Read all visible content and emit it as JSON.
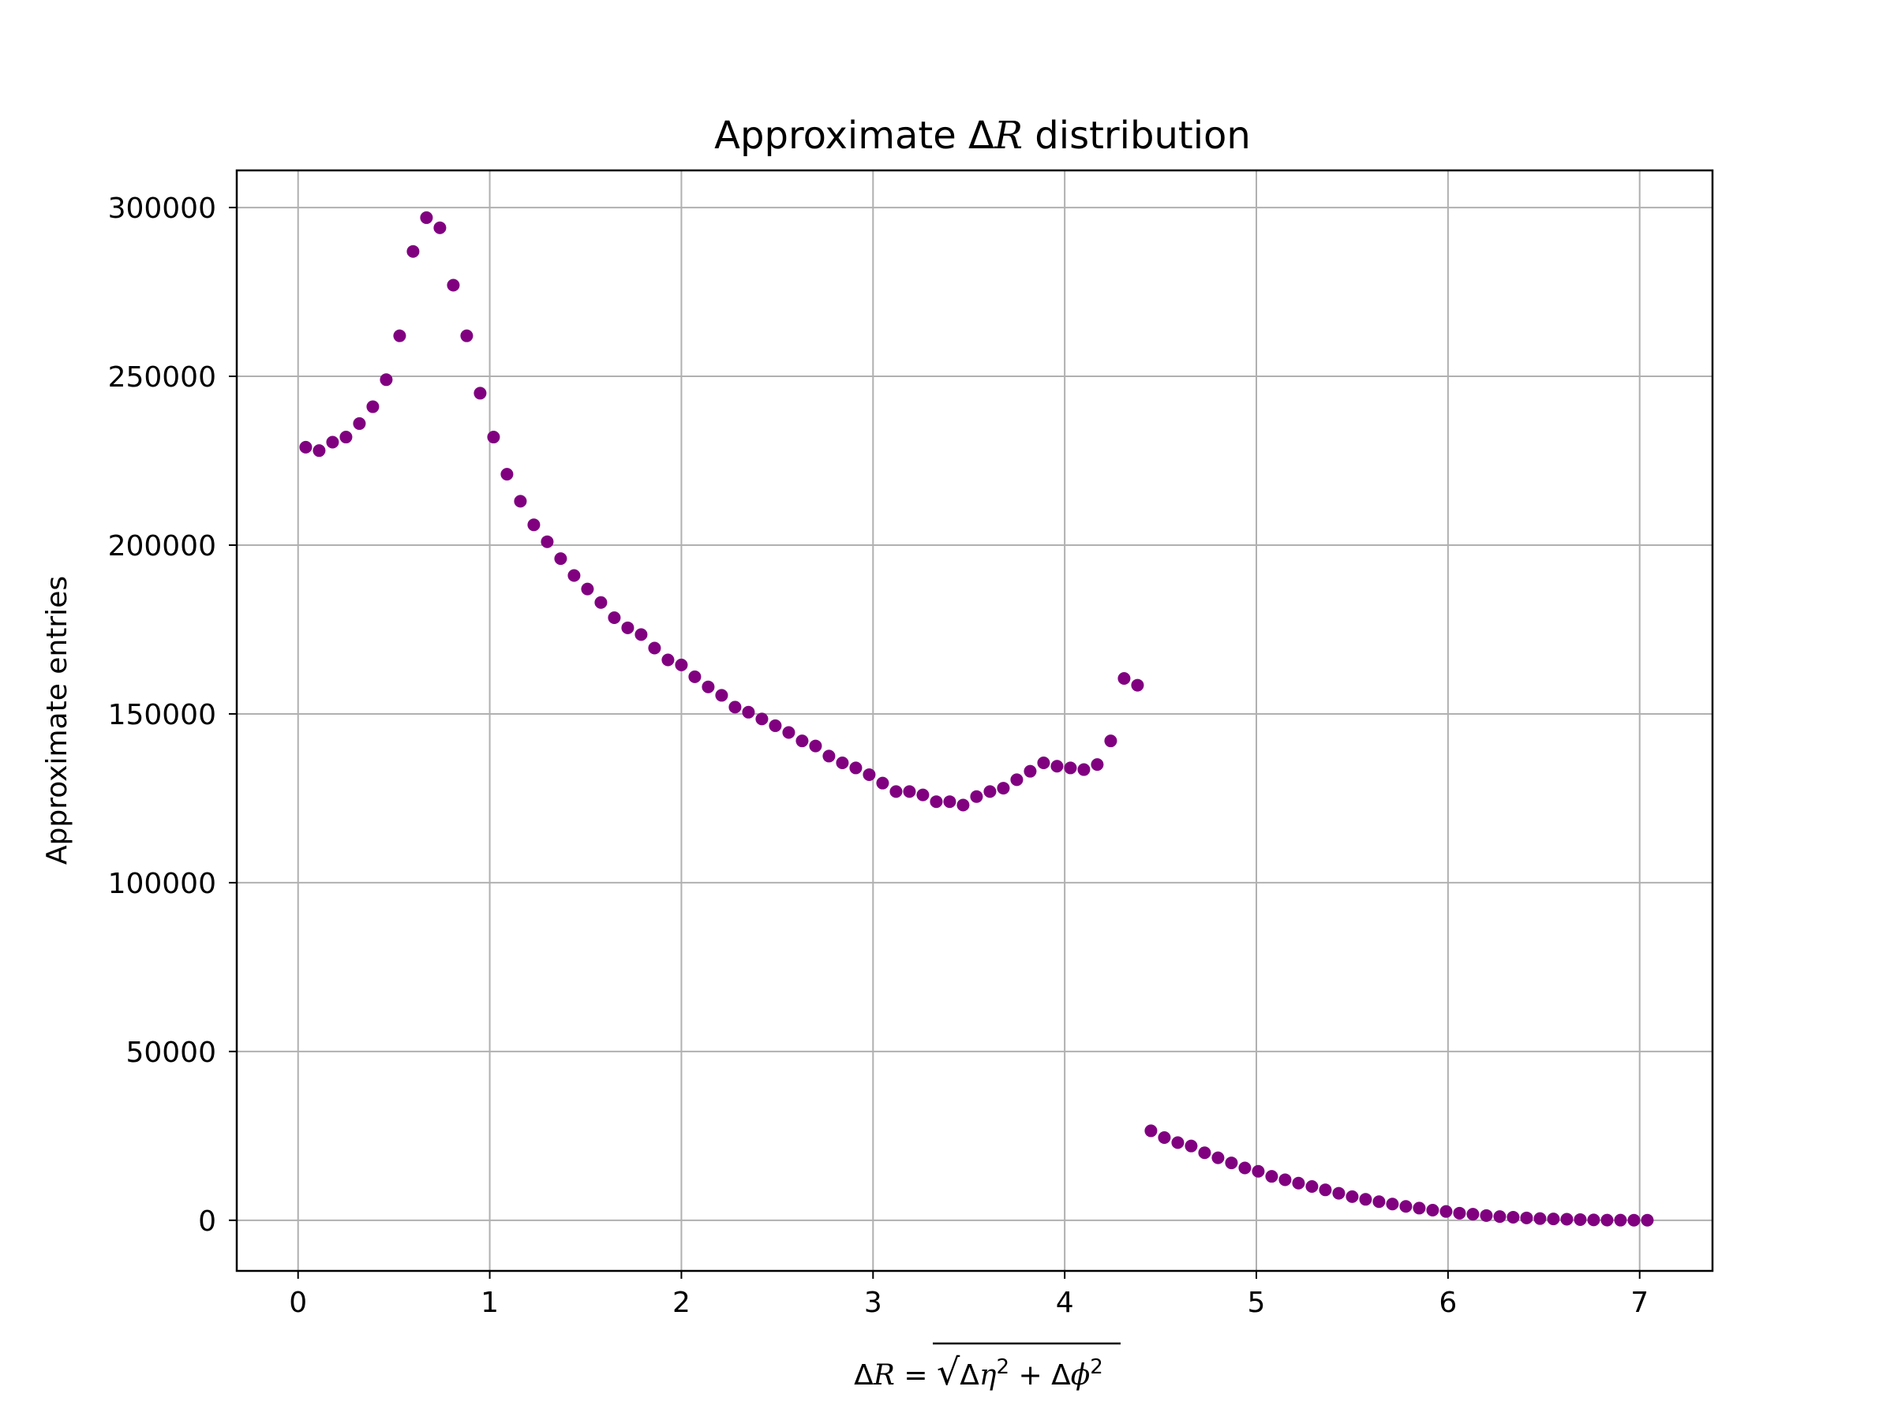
{
  "chart_data": {
    "type": "scatter",
    "title_prefix": "Approximate Δ",
    "title_var": "R",
    "title_suffix": " distribution",
    "xlabel": "ΔR = √(Δη² + Δϕ²)",
    "ylabel": "Approximate entries",
    "xlim": [
      -0.32,
      7.38
    ],
    "ylim": [
      -15000,
      311000
    ],
    "xticks": [
      0,
      1,
      2,
      3,
      4,
      5,
      6,
      7
    ],
    "yticks": [
      0,
      50000,
      100000,
      150000,
      200000,
      250000,
      300000
    ],
    "grid": true,
    "marker_color": "#800080",
    "series": [
      {
        "x": [
          0.04,
          0.11,
          0.18,
          0.25,
          0.32,
          0.39,
          0.46,
          0.53,
          0.6,
          0.67,
          0.74,
          0.81,
          0.88,
          0.95,
          1.02,
          1.09,
          1.16,
          1.23,
          1.3,
          1.37,
          1.44,
          1.51,
          1.58,
          1.65,
          1.72,
          1.79,
          1.86,
          1.93,
          2.0,
          2.07,
          2.14,
          2.21,
          2.28,
          2.35,
          2.42,
          2.49,
          2.56,
          2.63,
          2.7,
          2.77,
          2.84,
          2.91,
          2.98,
          3.05,
          3.12,
          3.19,
          3.26,
          3.33,
          3.4,
          3.47,
          3.54,
          3.61,
          3.68,
          3.75,
          3.82,
          3.89,
          3.96,
          4.03,
          4.1,
          4.17,
          4.24,
          4.31,
          4.38,
          4.45,
          4.52,
          4.59,
          4.66,
          4.73,
          4.8,
          4.87,
          4.94,
          5.01,
          5.08,
          5.15,
          5.22,
          5.29,
          5.36,
          5.43,
          5.5,
          5.57,
          5.64,
          5.71,
          5.78,
          5.85,
          5.92,
          5.99,
          6.06,
          6.13,
          6.2,
          6.27,
          6.34,
          6.41,
          6.48,
          6.55,
          6.62,
          6.69,
          6.76,
          6.83,
          6.9,
          6.97,
          7.04
        ],
        "y": [
          229000,
          228000,
          230500,
          232000,
          236000,
          241000,
          249000,
          262000,
          287000,
          297000,
          294000,
          277000,
          262000,
          245000,
          232000,
          221000,
          213000,
          206000,
          201000,
          196000,
          191000,
          187000,
          183000,
          178500,
          175500,
          173500,
          169500,
          166000,
          164500,
          161000,
          158000,
          155500,
          152000,
          150500,
          148500,
          146500,
          144500,
          142000,
          140500,
          137500,
          135500,
          134000,
          132000,
          129500,
          127000,
          127000,
          126000,
          124000,
          124000,
          123000,
          125500,
          127000,
          128000,
          130500,
          133000,
          135500,
          134500,
          134000,
          133500,
          135000,
          142000,
          160500,
          158500,
          26500,
          24500,
          23000,
          22000,
          20000,
          18500,
          17000,
          15500,
          14500,
          13000,
          12000,
          11000,
          10000,
          9000,
          8000,
          7000,
          6200,
          5500,
          4800,
          4100,
          3600,
          3000,
          2600,
          2100,
          1800,
          1400,
          1100,
          900,
          700,
          500,
          400,
          300,
          200,
          100,
          50,
          30,
          20,
          10
        ]
      }
    ]
  }
}
